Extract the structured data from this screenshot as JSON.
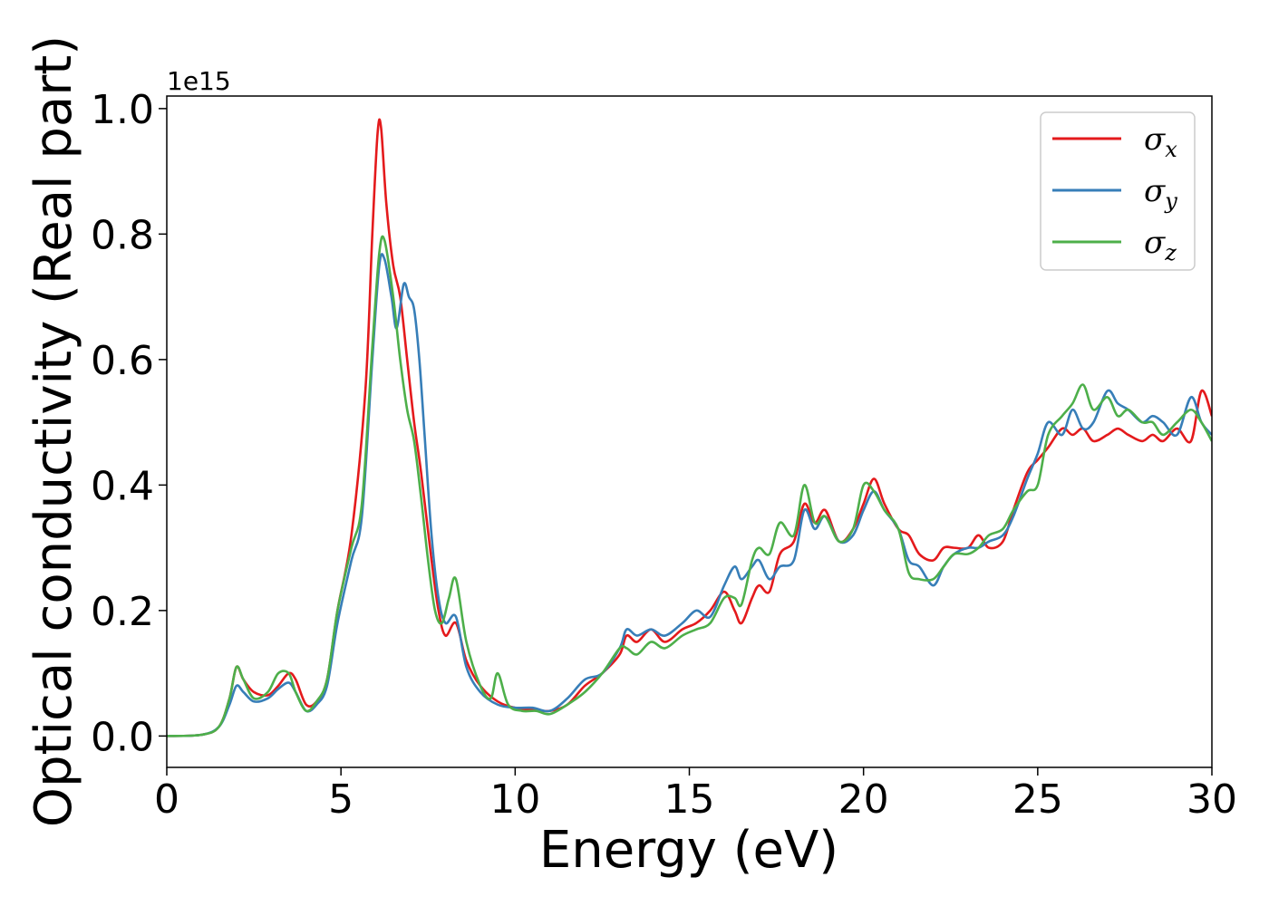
{
  "chart_data": {
    "type": "line",
    "title": "",
    "xlabel": "Energy (eV)",
    "ylabel": "Optical conductivity (Real part)",
    "y_offset_text": "1e15",
    "xlim": [
      0,
      30
    ],
    "ylim": [
      -0.05,
      1.02
    ],
    "xticks": [
      0,
      5,
      10,
      15,
      20,
      25,
      30
    ],
    "yticks": [
      0.0,
      0.2,
      0.4,
      0.6,
      0.8,
      1.0
    ],
    "xtick_labels": [
      "0",
      "5",
      "10",
      "15",
      "20",
      "25",
      "30"
    ],
    "ytick_labels": [
      "0.0",
      "0.2",
      "0.4",
      "0.6",
      "0.8",
      "1.0"
    ],
    "grid": false,
    "legend_position": "top-right",
    "series": [
      {
        "name": "σ",
        "subscript": "x",
        "color": "#e41a1c",
        "x": [
          0,
          1,
          1.5,
          1.8,
          2.0,
          2.2,
          2.5,
          2.9,
          3.2,
          3.5,
          3.7,
          4.0,
          4.3,
          4.6,
          4.9,
          5.3,
          5.7,
          5.9,
          6.05,
          6.15,
          6.3,
          6.5,
          6.7,
          6.9,
          7.1,
          7.3,
          7.6,
          7.8,
          8.0,
          8.3,
          8.6,
          9.0,
          9.5,
          10.0,
          10.5,
          11.0,
          11.5,
          12.0,
          12.5,
          13.0,
          13.2,
          13.5,
          13.9,
          14.3,
          14.8,
          15.2,
          15.6,
          16.0,
          16.3,
          16.5,
          16.8,
          17.0,
          17.3,
          17.6,
          18.0,
          18.3,
          18.6,
          18.9,
          19.3,
          19.7,
          20.0,
          20.3,
          20.6,
          21.0,
          21.3,
          21.6,
          22.0,
          22.3,
          22.6,
          23.0,
          23.3,
          23.6,
          24.0,
          24.3,
          24.7,
          25.0,
          25.3,
          25.7,
          26.0,
          26.3,
          26.6,
          27.0,
          27.3,
          27.6,
          28.0,
          28.3,
          28.6,
          29.0,
          29.4,
          29.7,
          30.0
        ],
        "values": [
          0.0,
          0.002,
          0.015,
          0.06,
          0.11,
          0.09,
          0.07,
          0.065,
          0.08,
          0.1,
          0.09,
          0.05,
          0.055,
          0.09,
          0.2,
          0.32,
          0.55,
          0.8,
          0.96,
          0.97,
          0.85,
          0.75,
          0.7,
          0.6,
          0.5,
          0.42,
          0.28,
          0.2,
          0.16,
          0.18,
          0.12,
          0.08,
          0.055,
          0.045,
          0.042,
          0.04,
          0.05,
          0.08,
          0.1,
          0.13,
          0.16,
          0.15,
          0.17,
          0.15,
          0.17,
          0.18,
          0.2,
          0.23,
          0.2,
          0.18,
          0.22,
          0.24,
          0.23,
          0.29,
          0.31,
          0.37,
          0.34,
          0.36,
          0.31,
          0.33,
          0.37,
          0.41,
          0.37,
          0.33,
          0.32,
          0.29,
          0.28,
          0.3,
          0.3,
          0.3,
          0.32,
          0.3,
          0.31,
          0.36,
          0.42,
          0.44,
          0.46,
          0.49,
          0.48,
          0.49,
          0.47,
          0.48,
          0.49,
          0.48,
          0.47,
          0.48,
          0.47,
          0.49,
          0.47,
          0.55,
          0.51
        ]
      },
      {
        "name": "σ",
        "subscript": "y",
        "color": "#377eb8",
        "x": [
          0,
          1,
          1.5,
          1.8,
          2.0,
          2.2,
          2.5,
          2.9,
          3.2,
          3.5,
          3.7,
          4.0,
          4.3,
          4.6,
          4.9,
          5.3,
          5.6,
          5.9,
          6.1,
          6.25,
          6.45,
          6.6,
          6.8,
          6.95,
          7.1,
          7.25,
          7.4,
          7.6,
          7.8,
          8.0,
          8.3,
          8.6,
          9.0,
          9.5,
          10.0,
          10.5,
          11.0,
          11.5,
          12.0,
          12.5,
          13.0,
          13.2,
          13.5,
          13.9,
          14.3,
          14.8,
          15.2,
          15.6,
          16.0,
          16.3,
          16.5,
          16.8,
          17.0,
          17.3,
          17.6,
          18.0,
          18.3,
          18.6,
          18.9,
          19.3,
          19.7,
          20.0,
          20.3,
          20.6,
          21.0,
          21.3,
          21.6,
          22.0,
          22.3,
          22.6,
          23.0,
          23.3,
          23.6,
          24.0,
          24.3,
          24.7,
          25.0,
          25.3,
          25.7,
          26.0,
          26.3,
          26.6,
          27.0,
          27.3,
          27.6,
          28.0,
          28.3,
          28.6,
          29.0,
          29.4,
          29.7,
          30.0
        ],
        "values": [
          0.0,
          0.002,
          0.015,
          0.05,
          0.08,
          0.07,
          0.055,
          0.06,
          0.075,
          0.085,
          0.07,
          0.04,
          0.05,
          0.08,
          0.18,
          0.28,
          0.35,
          0.6,
          0.75,
          0.76,
          0.7,
          0.65,
          0.72,
          0.7,
          0.68,
          0.6,
          0.48,
          0.32,
          0.22,
          0.18,
          0.19,
          0.11,
          0.07,
          0.05,
          0.045,
          0.045,
          0.04,
          0.06,
          0.09,
          0.1,
          0.14,
          0.17,
          0.16,
          0.17,
          0.16,
          0.18,
          0.2,
          0.19,
          0.24,
          0.27,
          0.25,
          0.27,
          0.28,
          0.25,
          0.27,
          0.28,
          0.36,
          0.33,
          0.35,
          0.31,
          0.32,
          0.36,
          0.39,
          0.36,
          0.33,
          0.28,
          0.27,
          0.24,
          0.27,
          0.29,
          0.3,
          0.3,
          0.31,
          0.32,
          0.35,
          0.41,
          0.45,
          0.5,
          0.48,
          0.52,
          0.49,
          0.5,
          0.55,
          0.53,
          0.52,
          0.5,
          0.51,
          0.5,
          0.48,
          0.54,
          0.5,
          0.48
        ]
      },
      {
        "name": "σ",
        "subscript": "z",
        "color": "#4daf4a",
        "x": [
          0,
          1,
          1.5,
          1.8,
          2.0,
          2.2,
          2.5,
          2.9,
          3.2,
          3.5,
          3.7,
          4.0,
          4.3,
          4.6,
          4.9,
          5.3,
          5.6,
          5.9,
          6.1,
          6.25,
          6.5,
          6.7,
          6.9,
          7.1,
          7.3,
          7.5,
          7.7,
          7.9,
          8.1,
          8.3,
          8.6,
          9.0,
          9.3,
          9.5,
          9.8,
          10.2,
          10.6,
          11.0,
          11.5,
          12.0,
          12.5,
          13.0,
          13.2,
          13.5,
          13.9,
          14.3,
          14.8,
          15.2,
          15.6,
          16.0,
          16.3,
          16.5,
          16.8,
          17.0,
          17.3,
          17.6,
          18.0,
          18.3,
          18.6,
          18.9,
          19.3,
          19.7,
          20.0,
          20.3,
          20.6,
          21.0,
          21.3,
          21.6,
          22.0,
          22.3,
          22.6,
          23.0,
          23.3,
          23.6,
          24.0,
          24.3,
          24.7,
          25.0,
          25.3,
          25.7,
          26.0,
          26.3,
          26.6,
          27.0,
          27.3,
          27.6,
          28.0,
          28.3,
          28.6,
          29.0,
          29.4,
          29.7,
          30.0
        ],
        "values": [
          0.0,
          0.002,
          0.015,
          0.06,
          0.11,
          0.09,
          0.06,
          0.07,
          0.1,
          0.1,
          0.07,
          0.04,
          0.055,
          0.09,
          0.2,
          0.3,
          0.37,
          0.62,
          0.77,
          0.79,
          0.7,
          0.6,
          0.52,
          0.47,
          0.38,
          0.28,
          0.2,
          0.18,
          0.22,
          0.25,
          0.15,
          0.08,
          0.06,
          0.1,
          0.05,
          0.04,
          0.04,
          0.035,
          0.05,
          0.07,
          0.1,
          0.14,
          0.14,
          0.13,
          0.15,
          0.14,
          0.16,
          0.17,
          0.18,
          0.22,
          0.22,
          0.21,
          0.28,
          0.3,
          0.29,
          0.34,
          0.32,
          0.4,
          0.34,
          0.35,
          0.31,
          0.33,
          0.4,
          0.39,
          0.36,
          0.33,
          0.26,
          0.25,
          0.25,
          0.27,
          0.29,
          0.29,
          0.3,
          0.32,
          0.33,
          0.36,
          0.39,
          0.4,
          0.48,
          0.51,
          0.53,
          0.56,
          0.52,
          0.54,
          0.51,
          0.52,
          0.5,
          0.5,
          0.48,
          0.5,
          0.52,
          0.5,
          0.47
        ]
      }
    ]
  }
}
